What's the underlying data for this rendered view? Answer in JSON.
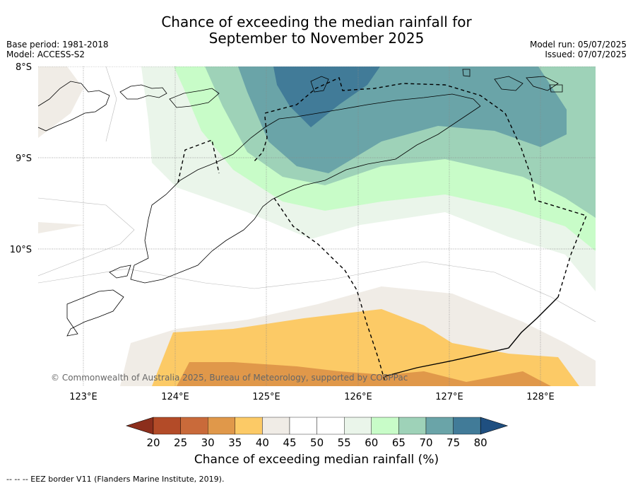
{
  "header": {
    "title_line1": "Chance of exceeding the median rainfall for",
    "title_line2": "September to November 2025",
    "base_period": "Base period: 1981-2018",
    "model": "Model: ACCESS-S2",
    "model_run": "Model run: 05/07/2025",
    "issued": "Issued: 07/07/2025"
  },
  "map": {
    "lat_labels": [
      "8°S",
      "9°S",
      "10°S"
    ],
    "lon_labels": [
      "123°E",
      "124°E",
      "125°E",
      "126°E",
      "127°E",
      "128°E"
    ],
    "copyright": "© Commonwealth of Australia 2025, Bureau of Meteorology, supported by COSPPac"
  },
  "colorbar": {
    "ticks": [
      "20",
      "25",
      "30",
      "35",
      "40",
      "45",
      "50",
      "55",
      "60",
      "65",
      "70",
      "75",
      "80"
    ],
    "colors": [
      "#b34b28",
      "#c96a3a",
      "#e0984a",
      "#fcca66",
      "#f0ece6",
      "#ffffff",
      "#ffffff",
      "#eaf5ea",
      "#c8fcc8",
      "#9ed2b8",
      "#6aa4a8",
      "#417b98"
    ],
    "under_color": "#8c2e1c",
    "over_color": "#1f4f80",
    "label": "Chance of exceeding median rainfall (%)"
  },
  "footer": {
    "legend_text": "--  --  -- EEZ border V11 (Flanders Marine Institute, 2019)."
  }
}
